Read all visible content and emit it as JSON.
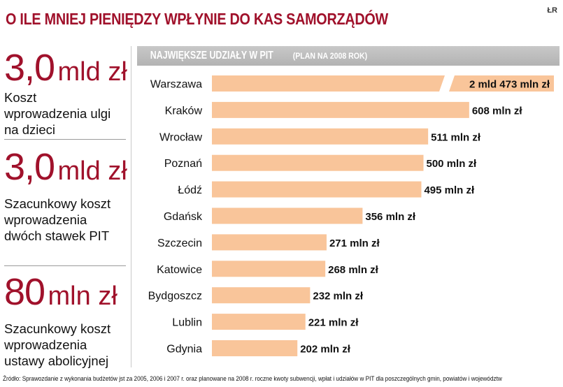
{
  "title": "O ILE MNIEJ PIENIĘDZY WPŁYNIE DO KAS SAMORZĄDÓW",
  "credit": "ŁR",
  "stats": [
    {
      "number": "3,0",
      "unit": "mld zł",
      "description": "Koszt wprowadzenia ulgi na dzieci"
    },
    {
      "number": "3,0",
      "unit": "mld zł",
      "description": "Szacunkowy koszt wprowadzenia dwóch stawek PIT"
    },
    {
      "number": "80",
      "unit": "mln zł",
      "description": "Szacunkowy koszt wprowadzenia ustawy abolicyjnej"
    }
  ],
  "chart_data": {
    "type": "bar",
    "orientation": "horizontal",
    "title": "NAJWIĘKSZE UDZIAŁY W PIT",
    "subtitle": "(PLAN NA 2008 ROK)",
    "unit": "mln zł",
    "categories": [
      "Warszawa",
      "Kraków",
      "Wrocław",
      "Poznań",
      "Łódź",
      "Gdańsk",
      "Szczecin",
      "Katowice",
      "Bydgoszcz",
      "Lublin",
      "Gdynia"
    ],
    "values": [
      2473,
      608,
      511,
      500,
      495,
      356,
      271,
      268,
      232,
      221,
      202
    ],
    "labels": [
      "2 mld 473 mln zł",
      "608 mln zł",
      "511 mln zł",
      "500 mln zł",
      "495 mln zł",
      "356 mln zł",
      "271 mln zł",
      "268 mln zł",
      "232 mln zł",
      "221 mln zł",
      "202 mln zł"
    ],
    "broken_axis_bars": [
      "Warszawa"
    ],
    "bar_color": "#f9c59a"
  },
  "footer": "Źródło: Sprawozdanie z wykonania budżetów jst za 2005, 2006 i 2007 r. oraz planowane na 2008 r. roczne kwoty subwencji, wpłat i udziałów w PIT dla poszczególnych gmin, powiatów i województw"
}
